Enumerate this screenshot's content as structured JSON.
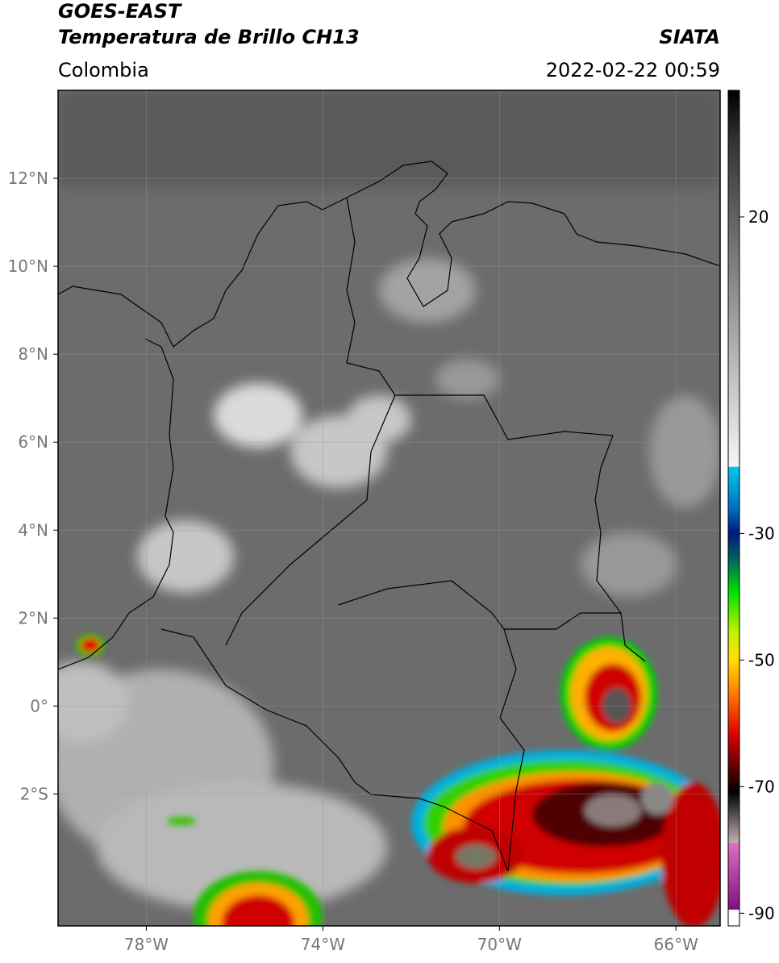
{
  "header": {
    "title": "GOES-EAST",
    "subtitle": "Temperatura de Brillo CH13",
    "region": "Colombia",
    "source": "SIATA",
    "datetime": "2022-02-22 00:59"
  },
  "map": {
    "lonlim": [
      -80,
      -65
    ],
    "latlim": [
      -5,
      14
    ],
    "lat_ticks": [
      {
        "value": 12,
        "label": "12°N"
      },
      {
        "value": 10,
        "label": "10°N"
      },
      {
        "value": 8,
        "label": "8°N"
      },
      {
        "value": 6,
        "label": "6°N"
      },
      {
        "value": 4,
        "label": "4°N"
      },
      {
        "value": 2,
        "label": "2°N"
      },
      {
        "value": 0,
        "label": "0°"
      },
      {
        "value": -2,
        "label": "2°S"
      }
    ],
    "lon_ticks": [
      {
        "value": -78,
        "label": "78°W"
      },
      {
        "value": -74,
        "label": "74°W"
      },
      {
        "value": -70,
        "label": "70°W"
      },
      {
        "value": -66,
        "label": "66°W"
      }
    ]
  },
  "colorbar": {
    "lim": [
      -92,
      40
    ],
    "ticks": [
      20,
      -30,
      -50,
      -70,
      -90
    ]
  }
}
